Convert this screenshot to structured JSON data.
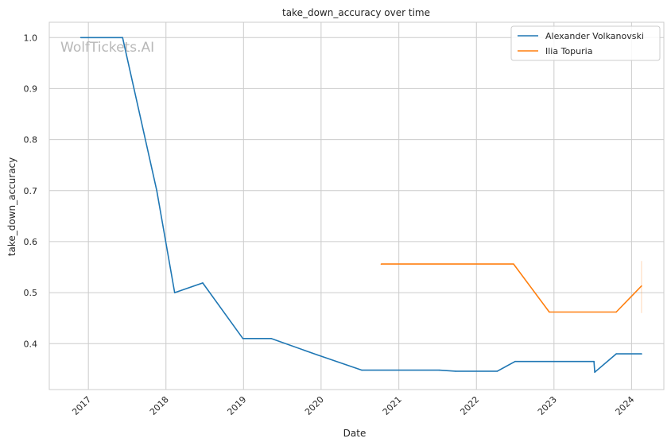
{
  "chart_data": {
    "type": "line",
    "title": "take_down_accuracy over time",
    "xlabel": "Date",
    "ylabel": "take_down_accuracy",
    "x_ticks": [
      "2017",
      "2018",
      "2019",
      "2020",
      "2021",
      "2022",
      "2023",
      "2024"
    ],
    "y_ticks": [
      "0.4",
      "0.5",
      "0.6",
      "0.7",
      "0.8",
      "0.9",
      "1.0"
    ],
    "xlim": [
      "2016-07-01",
      "2024-06-01"
    ],
    "ylim": [
      0.31,
      1.03
    ],
    "grid": true,
    "legend_position": "top-right",
    "watermark": "WolfTickets.AI",
    "colors": {
      "series0": "#1f77b4",
      "series1": "#ff7f0e"
    },
    "series": [
      {
        "name": "Alexander Volkanovski",
        "color": "#1f77b4",
        "points": [
          {
            "x": "2016-11-26",
            "y": 1.0
          },
          {
            "x": "2017-06-11",
            "y": 1.0
          },
          {
            "x": "2017-11-19",
            "y": 0.7
          },
          {
            "x": "2018-02-11",
            "y": 0.5
          },
          {
            "x": "2018-06-23",
            "y": 0.519
          },
          {
            "x": "2018-12-29",
            "y": 0.41
          },
          {
            "x": "2019-05-11",
            "y": 0.41
          },
          {
            "x": "2019-12-14",
            "y": 0.378
          },
          {
            "x": "2020-07-11",
            "y": 0.348
          },
          {
            "x": "2021-07-10",
            "y": 0.348
          },
          {
            "x": "2021-09-25",
            "y": 0.346
          },
          {
            "x": "2022-04-09",
            "y": 0.346
          },
          {
            "x": "2022-07-02",
            "y": 0.365
          },
          {
            "x": "2023-07-08",
            "y": 0.365
          },
          {
            "x": "2023-07-12",
            "y": 0.344
          },
          {
            "x": "2023-10-21",
            "y": 0.38
          },
          {
            "x": "2024-02-17",
            "y": 0.38
          }
        ]
      },
      {
        "name": "Ilia Topuria",
        "color": "#ff7f0e",
        "points": [
          {
            "x": "2020-10-10",
            "y": 0.556
          },
          {
            "x": "2022-06-25",
            "y": 0.556
          },
          {
            "x": "2022-12-10",
            "y": 0.462
          },
          {
            "x": "2023-10-21",
            "y": 0.462
          },
          {
            "x": "2024-02-17",
            "y": 0.513
          }
        ],
        "error_band": {
          "x": "2024-02-17",
          "low": 0.46,
          "high": 0.562
        }
      }
    ]
  }
}
